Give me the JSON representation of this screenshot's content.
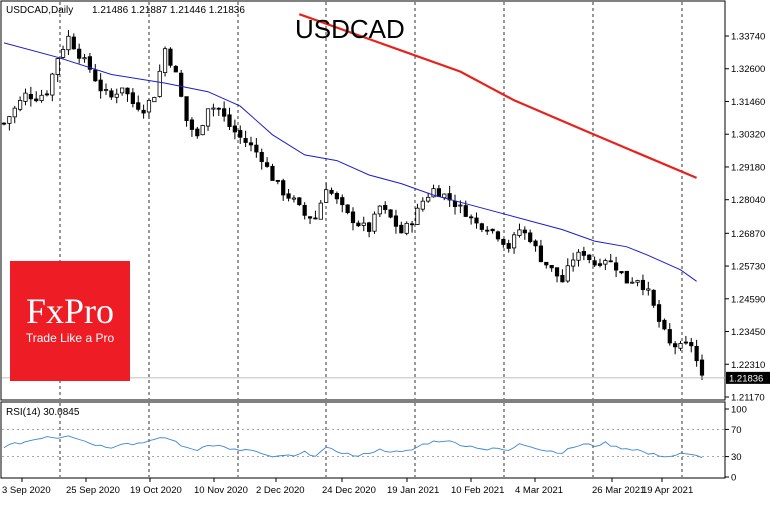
{
  "header": {
    "symbol_label": "USDCAD,Daily",
    "ohlc": "1.21486 1.21887 1.21446 1.21836",
    "big_title": "USDCAD"
  },
  "rsi_panel": {
    "label": "RSI(14) 30.0845",
    "levels": [
      "100",
      "70",
      "30",
      "0"
    ]
  },
  "logo": {
    "name": "FxPro",
    "tagline": "Trade Like a Pro"
  },
  "colors": {
    "candles": "#000000",
    "ma_fast": "#1c1ccf",
    "ma_slow": "#e8221b",
    "rsi": "#3a86d8",
    "logo_bg": "#ee1c25"
  },
  "chart_data": [
    {
      "type": "candlestick",
      "title": "USDCAD",
      "y_ticks": [
        "1.33740",
        "1.32600",
        "1.31460",
        "1.30320",
        "1.29180",
        "1.28040",
        "1.26870",
        "1.25730",
        "1.24590",
        "1.23450",
        "1.22310",
        "1.21170"
      ],
      "x_ticks": [
        "3 Sep 2020",
        "25 Sep 2020",
        "19 Oct 2020",
        "10 Nov 2020",
        "2 Dec 2020",
        "24 Dec 2020",
        "19 Jan 2021",
        "10 Feb 2021",
        "4 Mar 2021",
        "26 Mar 2021",
        "19 Apr 2021"
      ],
      "ylim": [
        1.2095,
        1.343
      ],
      "last_price": "1.21836",
      "grid": "vertical dashed",
      "close_path": [
        [
          0,
          1.307
        ],
        [
          2,
          1.312
        ],
        [
          4,
          1.317
        ],
        [
          6,
          1.316
        ],
        [
          8,
          1.318
        ],
        [
          10,
          1.33
        ],
        [
          12,
          1.337
        ],
        [
          14,
          1.331
        ],
        [
          16,
          1.326
        ],
        [
          18,
          1.319
        ],
        [
          20,
          1.316
        ],
        [
          22,
          1.32
        ],
        [
          24,
          1.314
        ],
        [
          26,
          1.312
        ],
        [
          28,
          1.317
        ],
        [
          30,
          1.333
        ],
        [
          32,
          1.324
        ],
        [
          34,
          1.308
        ],
        [
          36,
          1.302
        ],
        [
          38,
          1.313
        ],
        [
          40,
          1.312
        ],
        [
          42,
          1.306
        ],
        [
          44,
          1.302
        ],
        [
          46,
          1.299
        ],
        [
          48,
          1.295
        ],
        [
          50,
          1.288
        ],
        [
          52,
          1.283
        ],
        [
          54,
          1.28
        ],
        [
          56,
          1.275
        ],
        [
          58,
          1.274
        ],
        [
          60,
          1.285
        ],
        [
          62,
          1.28
        ],
        [
          64,
          1.275
        ],
        [
          66,
          1.272
        ],
        [
          68,
          1.27
        ],
        [
          70,
          1.278
        ],
        [
          72,
          1.274
        ],
        [
          74,
          1.269
        ],
        [
          76,
          1.273
        ],
        [
          78,
          1.28
        ],
        [
          80,
          1.284
        ],
        [
          82,
          1.282
        ],
        [
          84,
          1.279
        ],
        [
          86,
          1.276
        ],
        [
          88,
          1.272
        ],
        [
          90,
          1.271
        ],
        [
          92,
          1.268
        ],
        [
          94,
          1.264
        ],
        [
          96,
          1.27
        ],
        [
          98,
          1.267
        ],
        [
          100,
          1.26
        ],
        [
          102,
          1.256
        ],
        [
          104,
          1.252
        ],
        [
          106,
          1.26
        ],
        [
          108,
          1.262
        ],
        [
          110,
          1.258
        ],
        [
          112,
          1.26
        ],
        [
          114,
          1.257
        ],
        [
          116,
          1.252
        ],
        [
          118,
          1.253
        ],
        [
          120,
          1.248
        ],
        [
          122,
          1.238
        ],
        [
          124,
          1.23
        ],
        [
          126,
          1.229
        ],
        [
          128,
          1.23
        ],
        [
          130,
          1.2183
        ]
      ],
      "ma_fast": [
        [
          0,
          1.335
        ],
        [
          10,
          1.33
        ],
        [
          20,
          1.324
        ],
        [
          30,
          1.321
        ],
        [
          38,
          1.318
        ],
        [
          44,
          1.313
        ],
        [
          50,
          1.303
        ],
        [
          56,
          1.296
        ],
        [
          62,
          1.294
        ],
        [
          68,
          1.289
        ],
        [
          74,
          1.286
        ],
        [
          80,
          1.282
        ],
        [
          86,
          1.279
        ],
        [
          92,
          1.276
        ],
        [
          98,
          1.273
        ],
        [
          104,
          1.27
        ],
        [
          110,
          1.266
        ],
        [
          116,
          1.264
        ],
        [
          120,
          1.261
        ],
        [
          126,
          1.256
        ],
        [
          129,
          1.252
        ]
      ],
      "ma_slow": [
        [
          55,
          1.345
        ],
        [
          70,
          1.335
        ],
        [
          85,
          1.325
        ],
        [
          95,
          1.315
        ],
        [
          110,
          1.303
        ],
        [
          129,
          1.288
        ]
      ]
    },
    {
      "type": "line",
      "title": "RSI(14) 30.0845",
      "ylim": [
        0,
        100
      ],
      "y_ticks": [
        "100",
        "70",
        "30",
        "0"
      ],
      "reference_levels": [
        70,
        30
      ],
      "values": [
        [
          0,
          45
        ],
        [
          4,
          52
        ],
        [
          8,
          60
        ],
        [
          10,
          58
        ],
        [
          12,
          62
        ],
        [
          14,
          56
        ],
        [
          16,
          50
        ],
        [
          18,
          46
        ],
        [
          20,
          44
        ],
        [
          22,
          50
        ],
        [
          24,
          48
        ],
        [
          26,
          52
        ],
        [
          28,
          54
        ],
        [
          30,
          58
        ],
        [
          32,
          52
        ],
        [
          34,
          42
        ],
        [
          36,
          40
        ],
        [
          38,
          48
        ],
        [
          40,
          46
        ],
        [
          42,
          42
        ],
        [
          44,
          38
        ],
        [
          46,
          40
        ],
        [
          48,
          34
        ],
        [
          50,
          28
        ],
        [
          52,
          32
        ],
        [
          54,
          30
        ],
        [
          56,
          36
        ],
        [
          58,
          32
        ],
        [
          60,
          42
        ],
        [
          62,
          38
        ],
        [
          64,
          34
        ],
        [
          66,
          30
        ],
        [
          68,
          36
        ],
        [
          70,
          40
        ],
        [
          72,
          38
        ],
        [
          74,
          36
        ],
        [
          76,
          40
        ],
        [
          78,
          48
        ],
        [
          80,
          52
        ],
        [
          82,
          54
        ],
        [
          84,
          50
        ],
        [
          86,
          46
        ],
        [
          88,
          44
        ],
        [
          90,
          40
        ],
        [
          92,
          42
        ],
        [
          94,
          38
        ],
        [
          96,
          50
        ],
        [
          98,
          46
        ],
        [
          100,
          40
        ],
        [
          102,
          38
        ],
        [
          104,
          36
        ],
        [
          106,
          44
        ],
        [
          108,
          48
        ],
        [
          110,
          46
        ],
        [
          112,
          50
        ],
        [
          114,
          44
        ],
        [
          116,
          42
        ],
        [
          118,
          40
        ],
        [
          120,
          34
        ],
        [
          122,
          32
        ],
        [
          124,
          30
        ],
        [
          126,
          34
        ],
        [
          128,
          32
        ],
        [
          130,
          30
        ]
      ]
    }
  ]
}
